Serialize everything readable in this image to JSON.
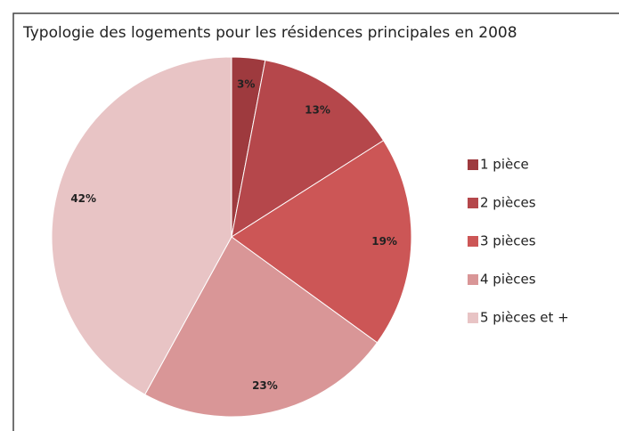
{
  "chart_data": {
    "type": "pie",
    "title": "Typologie des logements pour les résidences principales en 2008",
    "categories": [
      "1 pièce",
      "2 pièces",
      "3 pièces",
      "4 pièces",
      "5 pièces  et +"
    ],
    "values": [
      3,
      13,
      19,
      23,
      42
    ],
    "value_labels": [
      "3%",
      "13%",
      "19%",
      "23%",
      "42%"
    ],
    "colors": [
      "#9e3a3e",
      "#b5474b",
      "#cc5656",
      "#d99697",
      "#e8c4c5"
    ],
    "legend": "right"
  }
}
